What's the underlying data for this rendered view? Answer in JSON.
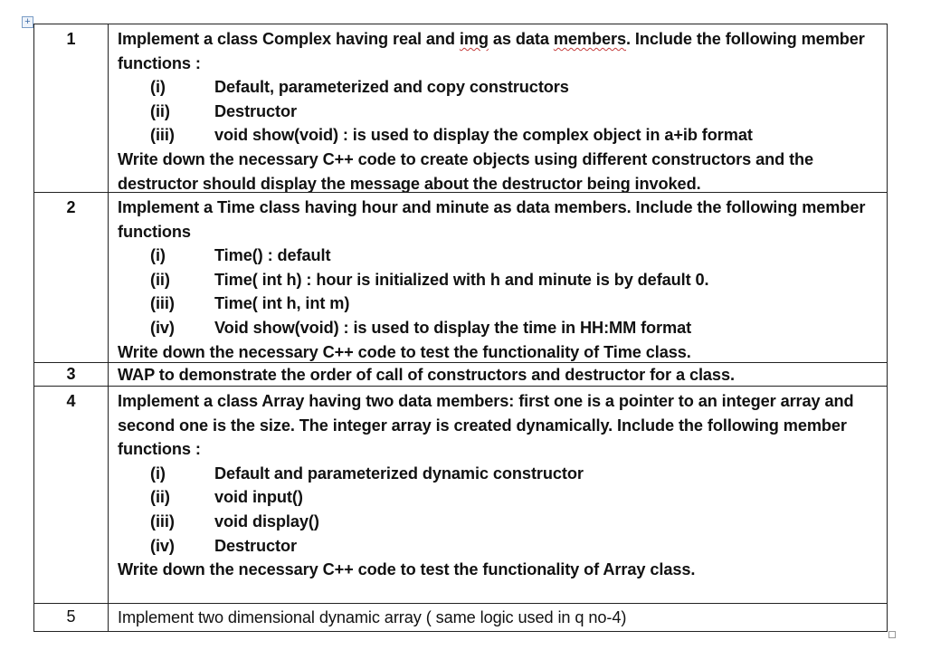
{
  "questions": [
    {
      "num": "1",
      "intro1": "Implement a class Complex having real and ",
      "intro_sq1": "img",
      "intro2": " as data ",
      "intro_sq2": "members",
      "intro3": ". Include  the following member functions :",
      "items": [
        {
          "roman": "(i)",
          "text": "Default, parameterized and copy constructors"
        },
        {
          "roman": "(ii)",
          "text": "Destructor"
        },
        {
          "roman": "(iii)",
          "text": "void show(void) : is used to display the complex object in a+ib format"
        }
      ],
      "outro": "Write down the necessary C++ code to create objects using different constructors and the destructor should display the message about the destructor being invoked."
    },
    {
      "num": "2",
      "intro": "Implement a Time class having hour and minute as data members. Include the following member functions",
      "items": [
        {
          "roman": "(i)",
          "text": "Time() : default"
        },
        {
          "roman": "(ii)",
          "text": "Time( int h) :  hour is initialized with h and minute is by default 0."
        },
        {
          "roman": "(iii)",
          "text": "Time( int h, int m)"
        },
        {
          "roman": "(iv)",
          "text": "Void show(void) : is used to display the time in HH:MM format"
        }
      ],
      "outro": "Write down the necessary C++ code to test the functionality of Time class."
    },
    {
      "num": "3",
      "text": "WAP to demonstrate the order of call of constructors and destructor for a class."
    },
    {
      "num": "4",
      "intro": "Implement a class Array having two data members: first one is a pointer to an integer array and second one is the size. The integer array is created dynamically. Include the following member functions :",
      "items": [
        {
          "roman": "(i)",
          "text": "Default and parameterized dynamic constructor"
        },
        {
          "roman": "(ii)",
          "text": "void input()"
        },
        {
          "roman": "(iii)",
          "text": " void display()"
        },
        {
          "roman": "(iv)",
          "text": "Destructor"
        }
      ],
      "outro": "Write down the necessary C++ code to test the functionality of Array class."
    },
    {
      "num": "5",
      "text": "Implement two dimensional dynamic array ( same logic used in q no-4)"
    }
  ]
}
